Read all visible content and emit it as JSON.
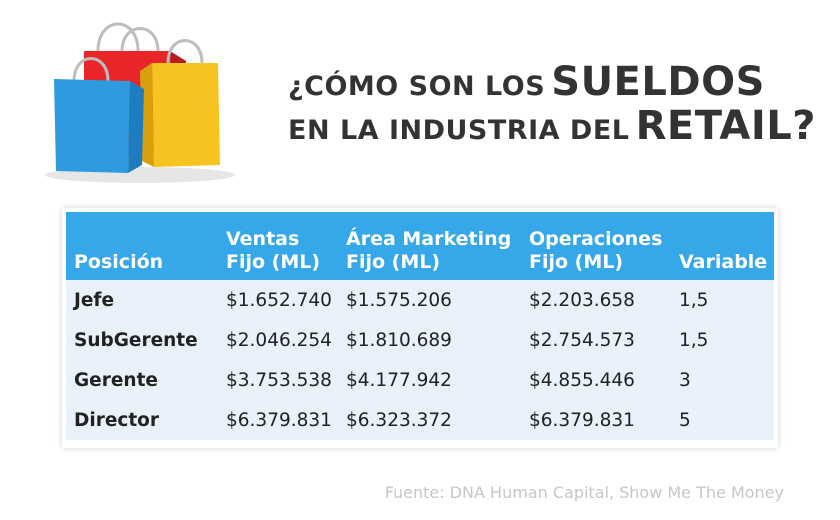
{
  "colors": {
    "header_bg": "#36a7e8",
    "body_bg": "#e9f1fb",
    "bag_blue": "#2e9be0",
    "bag_red": "#e8262a",
    "bag_yellow": "#f7c320"
  },
  "headline": {
    "line1_small": "¿CÓMO SON LOS",
    "line1_large": "SUELDOS",
    "line2_small": "EN LA INDUSTRIA DEL",
    "line2_large": "RETAIL?"
  },
  "table": {
    "headers": {
      "posicion": "Posición",
      "ventas_1": "Ventas",
      "ventas_2": "Fijo (ML)",
      "marketing_1": "Área Marketing",
      "marketing_2": "Fijo (ML)",
      "operaciones_1": "Operaciones",
      "operaciones_2": "Fijo (ML)",
      "variable": "Variable"
    },
    "rows": [
      {
        "posicion": "Jefe",
        "ventas": "$1.652.740",
        "marketing": "$1.575.206",
        "operaciones": "$2.203.658",
        "variable": "1,5"
      },
      {
        "posicion": "SubGerente",
        "ventas": "$2.046.254",
        "marketing": "$1.810.689",
        "operaciones": "$2.754.573",
        "variable": "1,5"
      },
      {
        "posicion": "Gerente",
        "ventas": "$3.753.538",
        "marketing": "$4.177.942",
        "operaciones": "$4.855.446",
        "variable": "3"
      },
      {
        "posicion": "Director",
        "ventas": "$6.379.831",
        "marketing": "$6.323.372",
        "operaciones": "$6.379.831",
        "variable": "5"
      }
    ]
  },
  "source": "Fuente: DNA Human Capital, Show Me The Money"
}
